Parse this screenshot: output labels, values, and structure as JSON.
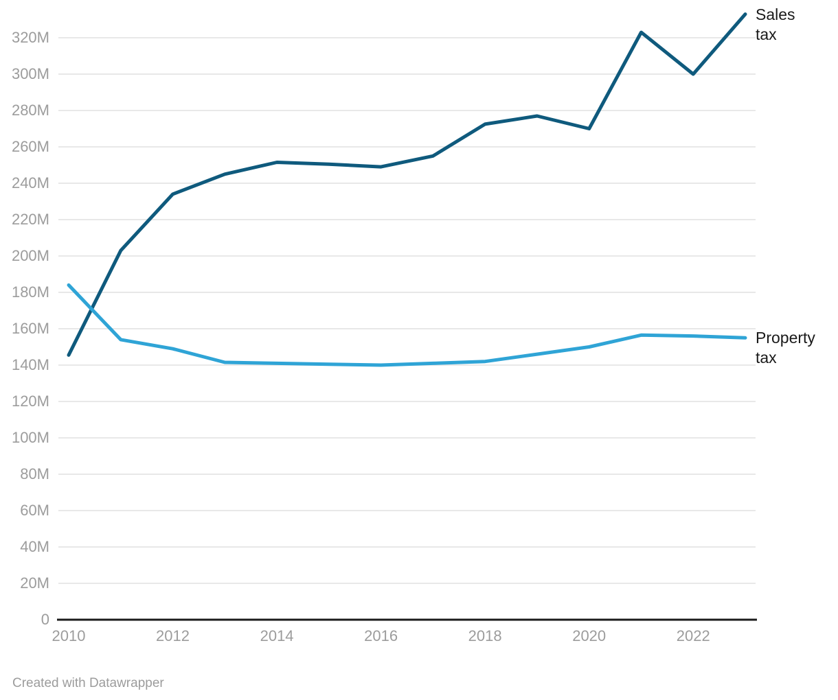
{
  "chart_data": {
    "type": "line",
    "x": [
      2010,
      2011,
      2012,
      2013,
      2014,
      2015,
      2016,
      2017,
      2018,
      2019,
      2020,
      2021,
      2022,
      2023
    ],
    "series": [
      {
        "name": "Sales tax",
        "label_lines": [
          "Sales",
          "tax"
        ],
        "color": "#0f5a7d",
        "values": [
          145.5,
          203,
          234,
          245,
          251.5,
          250.5,
          249,
          255,
          272.5,
          277,
          270,
          323,
          300,
          333
        ]
      },
      {
        "name": "Property tax",
        "label_lines": [
          "Property",
          "tax"
        ],
        "color": "#2fa4d6",
        "values": [
          184,
          154,
          149,
          141.5,
          141,
          140.5,
          140,
          141,
          142,
          146,
          150,
          156.5,
          156,
          155
        ]
      }
    ],
    "title": "",
    "xlabel": "",
    "ylabel": "",
    "y_unit": "M",
    "ylim": [
      0,
      333
    ],
    "y_ticks": [
      {
        "value": 0,
        "label": "0"
      },
      {
        "value": 20,
        "label": "20M"
      },
      {
        "value": 40,
        "label": "40M"
      },
      {
        "value": 60,
        "label": "60M"
      },
      {
        "value": 80,
        "label": "80M"
      },
      {
        "value": 100,
        "label": "100M"
      },
      {
        "value": 120,
        "label": "120M"
      },
      {
        "value": 140,
        "label": "140M"
      },
      {
        "value": 160,
        "label": "160M"
      },
      {
        "value": 180,
        "label": "180M"
      },
      {
        "value": 200,
        "label": "200M"
      },
      {
        "value": 220,
        "label": "220M"
      },
      {
        "value": 240,
        "label": "240M"
      },
      {
        "value": 260,
        "label": "260M"
      },
      {
        "value": 280,
        "label": "280M"
      },
      {
        "value": 300,
        "label": "300M"
      },
      {
        "value": 320,
        "label": "320M"
      }
    ],
    "x_ticks": [
      {
        "year": 2010,
        "label": "2010"
      },
      {
        "year": 2012,
        "label": "2012"
      },
      {
        "year": 2014,
        "label": "2014"
      },
      {
        "year": 2016,
        "label": "2016"
      },
      {
        "year": 2018,
        "label": "2018"
      },
      {
        "year": 2020,
        "label": "2020"
      },
      {
        "year": 2022,
        "label": "2022"
      }
    ],
    "grid": "horizontal",
    "legend_position": "direct-labels-right"
  },
  "colors": {
    "background": "#ffffff",
    "gridline": "#e8e8e8",
    "axis_line": "#1a1a1a",
    "tick_text": "#9c9c9c",
    "series_label_text": "#1a1a1a"
  },
  "attribution": "Created with Datawrapper"
}
